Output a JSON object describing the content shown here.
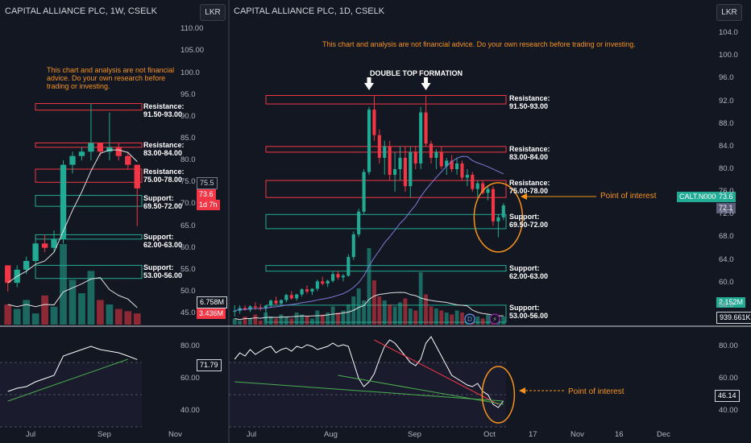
{
  "left_panel": {
    "title": "CAPITAL ALLIANCE PLC, 1W, CSELK",
    "currency_button": "LKR",
    "disclaimer": [
      "This chart and analysis are not financial",
      "advice. Do your own research before",
      "trading or investing."
    ],
    "zones": [
      {
        "kind": "resistance",
        "title": "Resistance:",
        "range": "91.50-93.00",
        "low": 91.5,
        "high": 93.0
      },
      {
        "kind": "resistance",
        "title": "Resistance:",
        "range": "83.00-84.00",
        "low": 83.0,
        "high": 84.0
      },
      {
        "kind": "resistance",
        "title": "Resistance:",
        "range": "75.00-78.00",
        "low": 75.0,
        "high": 78.0
      },
      {
        "kind": "support",
        "title": "Support:",
        "range": "69.50-72.00",
        "low": 69.5,
        "high": 72.0
      },
      {
        "kind": "support",
        "title": "Support:",
        "range": "62.00-63.00",
        "low": 62.0,
        "high": 63.0
      },
      {
        "kind": "support",
        "title": "Support:",
        "range": "53.00-56.00",
        "low": 53.0,
        "high": 56.0
      }
    ],
    "price_badges": {
      "hover": "75.5",
      "last": "73.6",
      "countdown": "1d 7h"
    },
    "volume_badges": {
      "ma": "6.758M",
      "vol": "3.436M"
    },
    "rsi_badge": "71.79"
  },
  "right_panel": {
    "title": "CAPITAL ALLIANCE PLC, 1D, CSELK",
    "currency_button": "LKR",
    "disclaimer": "This chart and analysis are not financial advice. Do your own research before trading or investing.",
    "pattern_label": "DOUBLE TOP FORMATION",
    "zones": [
      {
        "kind": "resistance",
        "title": "Resistance:",
        "range": "91.50-93.00",
        "low": 91.5,
        "high": 93.0
      },
      {
        "kind": "resistance",
        "title": "Resistance:",
        "range": "83.00-84.00",
        "low": 83.0,
        "high": 84.0
      },
      {
        "kind": "resistance",
        "title": "Resistance:",
        "range": "75.00-78.00",
        "low": 75.0,
        "high": 78.0
      },
      {
        "kind": "support",
        "title": "Support:",
        "range": "69.50-72.00",
        "low": 69.5,
        "high": 72.0
      },
      {
        "kind": "support",
        "title": "Support:",
        "range": "62.00-63.00",
        "low": 62.0,
        "high": 63.0
      },
      {
        "kind": "support",
        "title": "Support:",
        "range": "53.00-56.00",
        "low": 53.0,
        "high": 56.0
      }
    ],
    "poi_label": "Point of interest",
    "rsi_poi_label": "Point of interest",
    "symbol_badge": "CALT.N0000",
    "price_badges": {
      "last": "73.6",
      "ma": "72.1"
    },
    "volume_badges": {
      "vol": "2.152M",
      "ma": "939.661K"
    },
    "rsi_badge": "46.14",
    "event_icons": [
      "D",
      "⚡"
    ]
  },
  "chart_data": [
    {
      "type": "candlestick",
      "title": "CAPITAL ALLIANCE PLC, 1W, CSELK",
      "price_ticks": [
        "110.00",
        "105.00",
        "100.0",
        "95.0",
        "90.0",
        "85.0",
        "80.0",
        "75.0",
        "70.0",
        "65.0",
        "60.0",
        "55.0",
        "50.0",
        "45.0"
      ],
      "ylim": [
        43,
        113
      ],
      "x_labels": [
        "Jul",
        "Sep",
        "Nov"
      ],
      "candles": [
        [
          56,
          56,
          50,
          52
        ],
        [
          52,
          56,
          51,
          55
        ],
        [
          55,
          58,
          54,
          57
        ],
        [
          57,
          62,
          56,
          61
        ],
        [
          61,
          63,
          59,
          60
        ],
        [
          60,
          64,
          59,
          62
        ],
        [
          62,
          80,
          61,
          79
        ],
        [
          79,
          82,
          77,
          81
        ],
        [
          81,
          83,
          80,
          82
        ],
        [
          82,
          93,
          80,
          84
        ],
        [
          84,
          84,
          81,
          82
        ],
        [
          82,
          91,
          80,
          83
        ],
        [
          83,
          84,
          80,
          81
        ],
        [
          81,
          82,
          78,
          79
        ],
        [
          79,
          79,
          65,
          73.6
        ]
      ],
      "volume": [
        18,
        14,
        22,
        10,
        26,
        16,
        72,
        40,
        28,
        48,
        22,
        18,
        14,
        12,
        10
      ],
      "rsi": {
        "ticks": [
          "80.00",
          "60.00",
          "40.00"
        ],
        "last": 71.79
      },
      "rsi_values": [
        52,
        54,
        55,
        58,
        60,
        62,
        74,
        76,
        78,
        80,
        78,
        77,
        76,
        74,
        71.79
      ]
    },
    {
      "type": "candlestick",
      "title": "CAPITAL ALLIANCE PLC, 1D, CSELK",
      "price_ticks": [
        "104.0",
        "100.0",
        "96.0",
        "92.0",
        "88.0",
        "84.0",
        "80.0",
        "76.0",
        "72.0",
        "68.0",
        "64.0",
        "60.0",
        "56.0"
      ],
      "ylim": [
        53,
        107
      ],
      "x_labels": [
        "Jul",
        "Aug",
        "Sep",
        "Oct",
        "17",
        "Nov",
        "16",
        "Dec"
      ],
      "candles": [
        [
          55,
          56,
          54,
          55
        ],
        [
          55,
          56,
          54.5,
          55.5
        ],
        [
          55.5,
          56,
          55,
          55.2
        ],
        [
          55.2,
          56,
          54.8,
          55.8
        ],
        [
          55.8,
          56.5,
          55.2,
          55.6
        ],
        [
          55.6,
          56.2,
          55,
          55.4
        ],
        [
          55.4,
          56,
          55,
          55.9
        ],
        [
          55.9,
          57,
          55.5,
          56.8
        ],
        [
          56.8,
          57.5,
          56,
          56.3
        ],
        [
          56.3,
          57,
          55.8,
          56.9
        ],
        [
          56.9,
          58,
          56.5,
          57.8
        ],
        [
          57.8,
          58.5,
          57,
          57.2
        ],
        [
          57.2,
          58,
          56.8,
          57.9
        ],
        [
          57.9,
          59,
          57.5,
          58.8
        ],
        [
          58.8,
          59.5,
          58,
          58.4
        ],
        [
          58.4,
          59,
          57.8,
          58.9
        ],
        [
          58.9,
          60.5,
          58.5,
          60.2
        ],
        [
          60.2,
          61,
          59.5,
          59.8
        ],
        [
          59.8,
          60.5,
          59.2,
          60.3
        ],
        [
          60.3,
          62,
          60,
          61.5
        ],
        [
          61.5,
          62,
          60.5,
          60.9
        ],
        [
          60.9,
          61.5,
          60.2,
          61.2
        ],
        [
          61.2,
          65,
          61,
          64.5
        ],
        [
          64.5,
          69,
          64,
          68.5
        ],
        [
          68.5,
          73,
          68,
          72.5
        ],
        [
          72.5,
          80,
          72,
          79.5
        ],
        [
          79.5,
          91,
          79,
          90.5
        ],
        [
          90.5,
          93,
          85,
          86
        ],
        [
          86,
          87,
          81,
          82
        ],
        [
          82,
          85,
          79,
          84
        ],
        [
          84,
          85,
          78,
          79
        ],
        [
          79,
          83,
          76,
          80
        ],
        [
          80,
          84,
          78,
          82
        ],
        [
          82,
          84,
          76,
          77
        ],
        [
          77,
          84,
          75,
          83
        ],
        [
          83,
          84,
          80,
          81
        ],
        [
          81,
          91,
          80,
          90
        ],
        [
          90,
          93,
          84,
          84.5
        ],
        [
          84.5,
          85,
          81,
          82
        ],
        [
          82,
          83.5,
          80,
          83
        ],
        [
          83,
          84,
          80,
          80.5
        ],
        [
          80.5,
          82,
          79,
          81.5
        ],
        [
          81.5,
          82.5,
          79.5,
          80
        ],
        [
          80,
          82,
          79,
          81
        ],
        [
          81,
          81.5,
          78,
          78.5
        ],
        [
          78.5,
          80,
          77,
          79
        ],
        [
          79,
          79.5,
          76,
          76.5
        ],
        [
          76.5,
          78,
          75,
          77.5
        ],
        [
          77.5,
          78,
          75.5,
          75.8
        ],
        [
          75.8,
          77,
          74.5,
          76.5
        ],
        [
          76.5,
          77,
          70,
          70.8
        ],
        [
          70.8,
          72,
          68,
          71.5
        ],
        [
          71.5,
          74,
          71,
          73.6
        ]
      ],
      "volume": [
        3,
        2,
        4,
        3,
        5,
        2,
        6,
        4,
        3,
        5,
        4,
        3,
        6,
        5,
        4,
        3,
        7,
        5,
        6,
        9,
        6,
        7,
        10,
        14,
        18,
        12,
        38,
        22,
        14,
        12,
        10,
        9,
        11,
        13,
        8,
        7,
        26,
        15,
        9,
        8,
        7,
        6,
        5,
        7,
        6,
        4,
        5,
        4,
        3,
        5,
        2,
        3,
        4
      ],
      "rsi": {
        "ticks": [
          "80.00",
          "60.00",
          "40.00"
        ],
        "last": 46.14
      },
      "rsi_values": [
        72,
        76,
        74,
        78,
        75,
        77,
        79,
        80,
        76,
        78,
        79,
        77,
        80,
        79,
        81,
        80,
        78,
        79,
        80,
        82,
        80,
        81,
        80,
        70,
        60,
        55,
        58,
        63,
        72,
        80,
        84,
        82,
        78,
        74,
        70,
        68,
        72,
        82,
        86,
        80,
        74,
        68,
        62,
        60,
        58,
        56,
        55,
        57,
        52,
        50,
        44,
        42,
        46.14
      ]
    }
  ]
}
